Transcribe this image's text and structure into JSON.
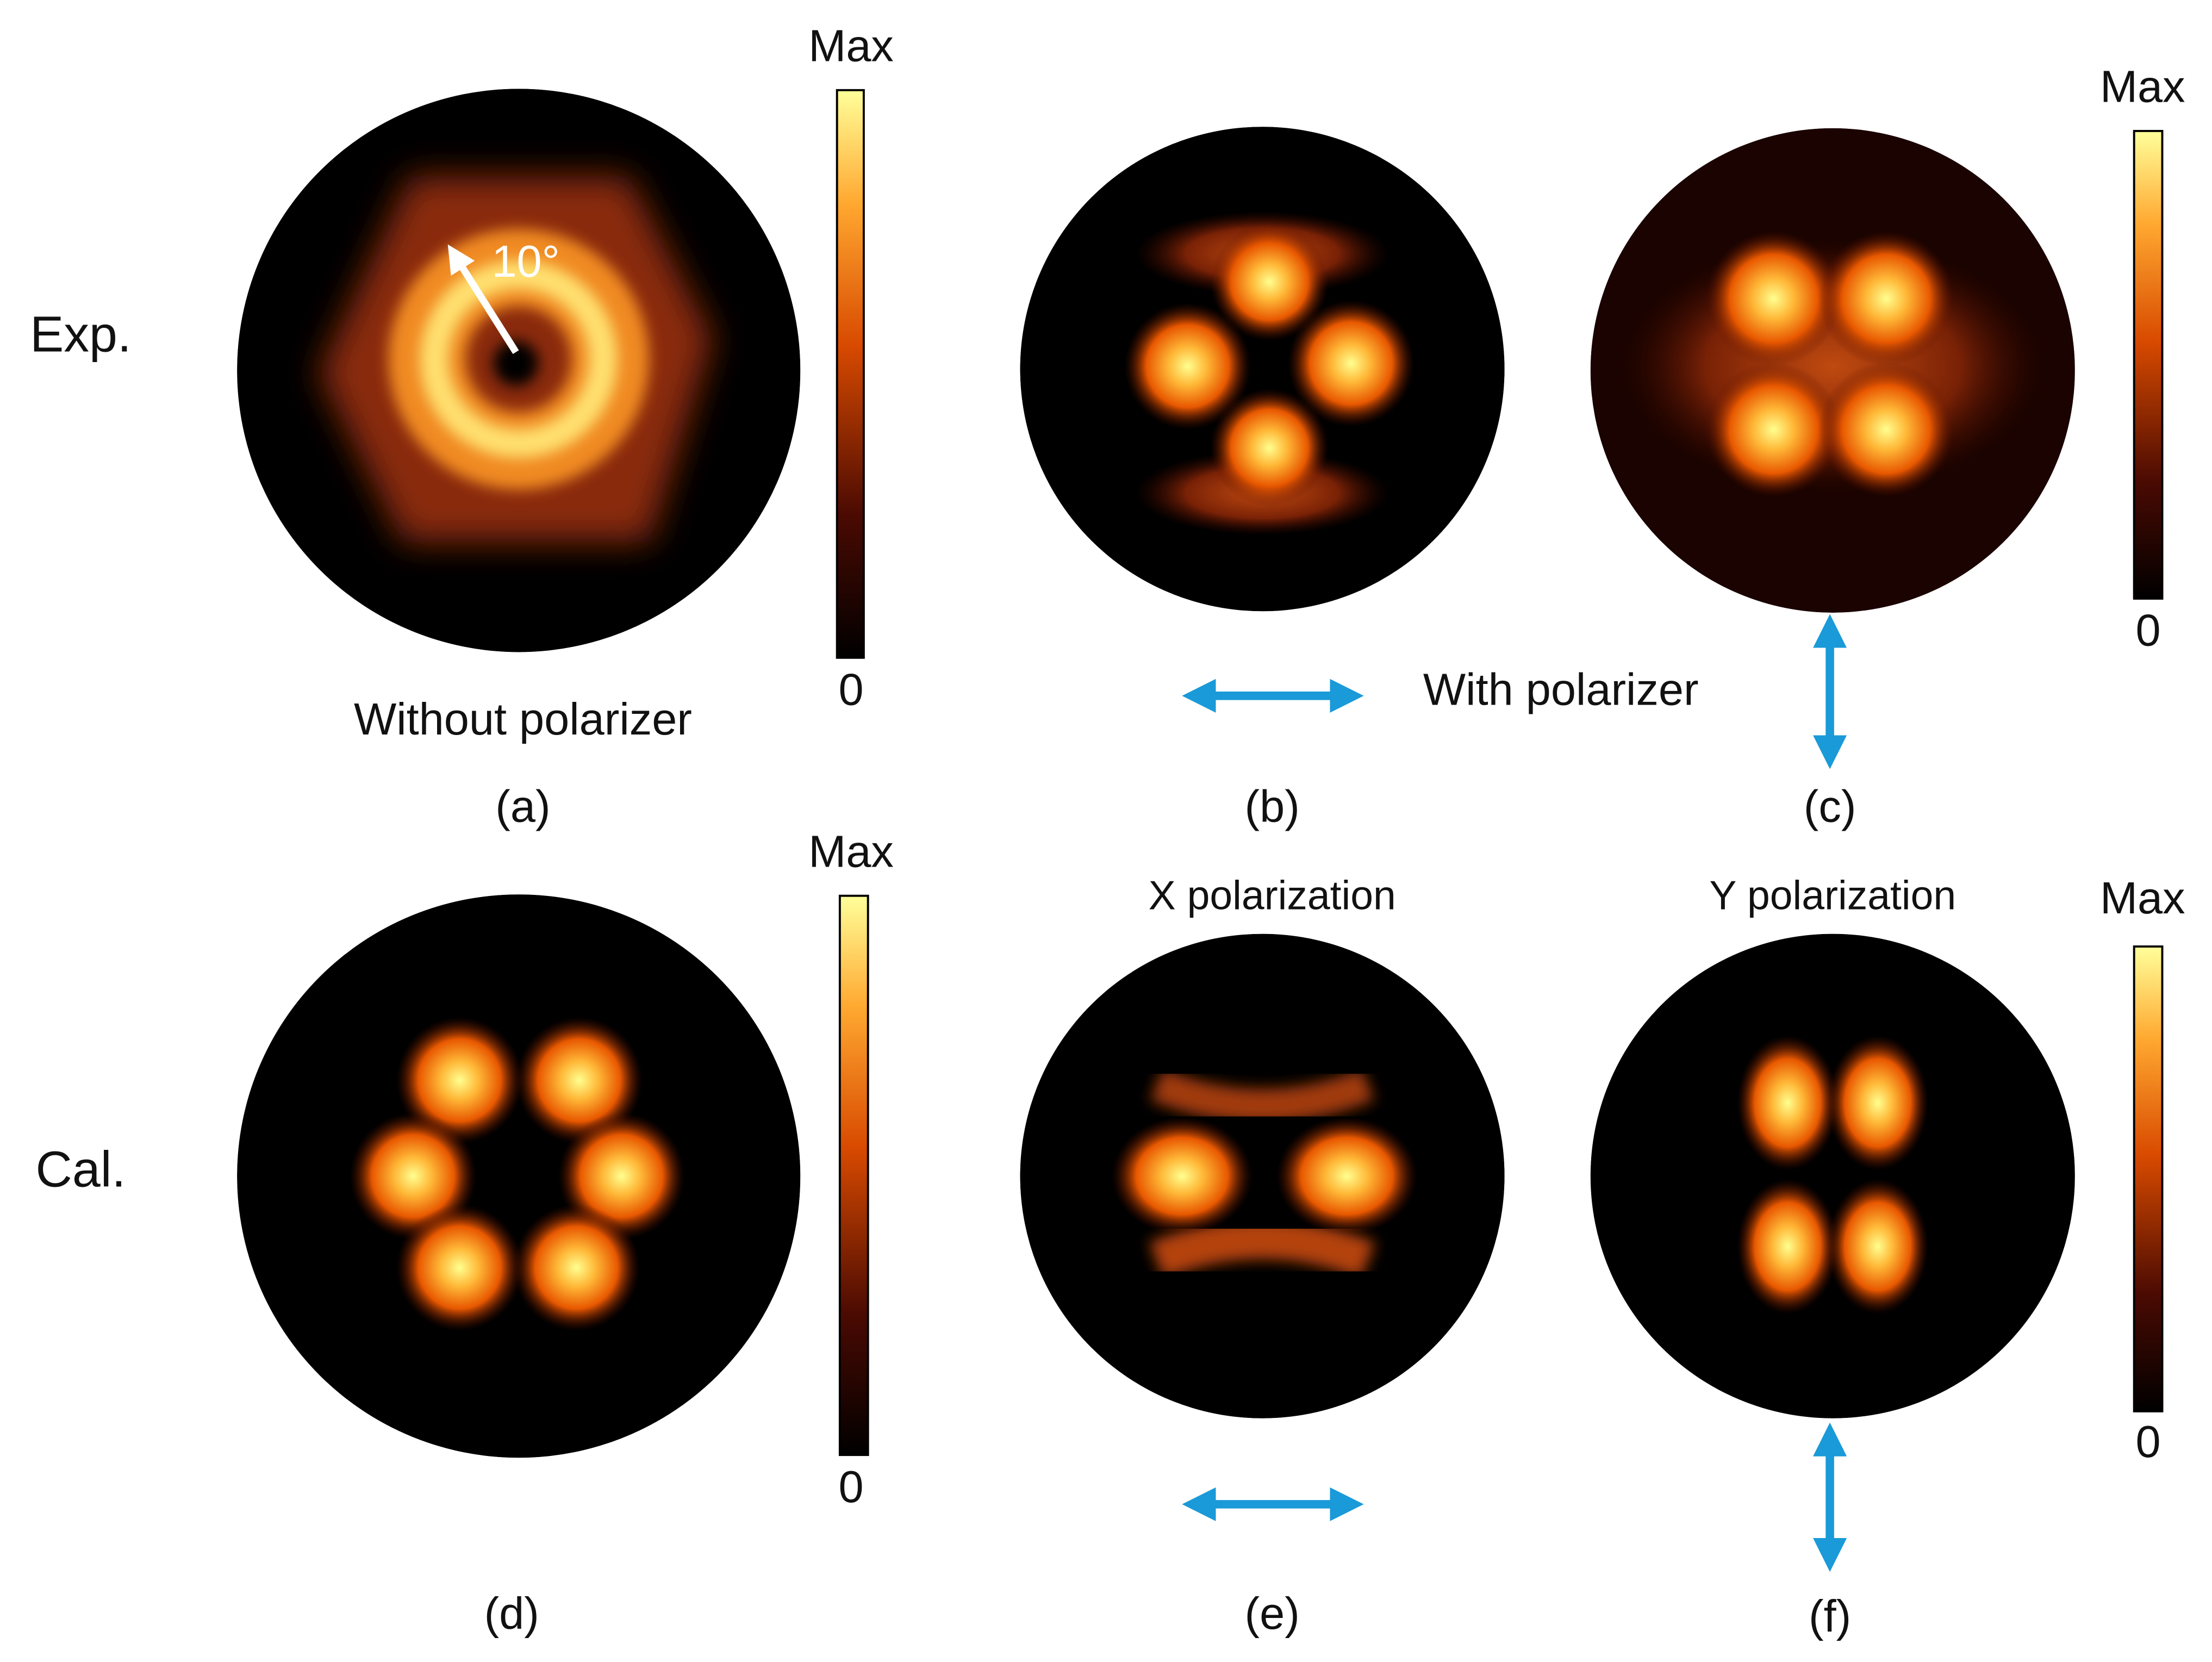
{
  "row_labels": [
    "Exp.",
    "Cal."
  ],
  "panels": [
    {
      "label": "(a)",
      "caption": "Without polarizer",
      "annotation": "10°"
    },
    {
      "label": "(b)"
    },
    {
      "label": "(c)"
    },
    {
      "label": "(d)"
    },
    {
      "label": "(e)",
      "caption": "X polarization"
    },
    {
      "label": "(f)",
      "caption": "Y polarization"
    }
  ],
  "shared_caption": "With polarizer",
  "colorbars": [
    {
      "max_label": "Max",
      "min_label": "0"
    },
    {
      "max_label": "Max",
      "min_label": "0"
    },
    {
      "max_label": "Max",
      "min_label": "0"
    },
    {
      "max_label": "Max",
      "min_label": "0"
    }
  ]
}
